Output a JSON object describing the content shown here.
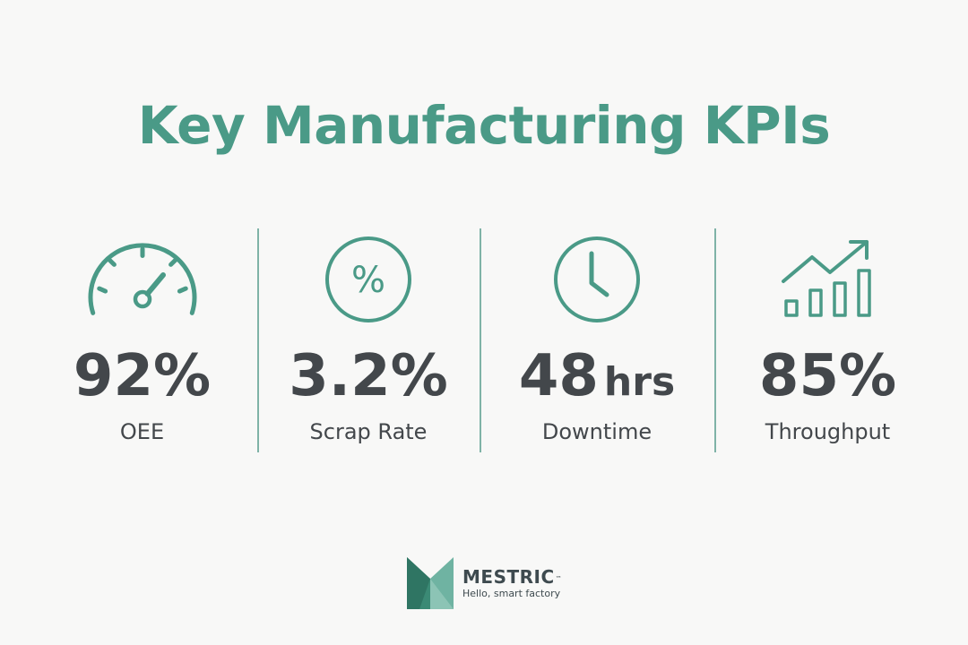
{
  "title": "Key Manufacturing KPIs",
  "colors": {
    "accent": "#4a9a87",
    "text": "#43474b",
    "background": "#f8f8f7",
    "divider": "#7fb3a7"
  },
  "kpis": [
    {
      "icon": "speedometer-icon",
      "value": "92%",
      "unit": "",
      "label": "OEE"
    },
    {
      "icon": "percent-icon",
      "value": "3.2%",
      "unit": "",
      "label": "Scrap Rate"
    },
    {
      "icon": "clock-icon",
      "value": "48",
      "unit": "hrs",
      "label": "Downtime"
    },
    {
      "icon": "growth-chart-icon",
      "value": "85%",
      "unit": "",
      "label": "Throughput"
    }
  ],
  "brand": {
    "name": "MESTRIC",
    "trademark": "™",
    "tagline": "Hello, smart factory"
  }
}
